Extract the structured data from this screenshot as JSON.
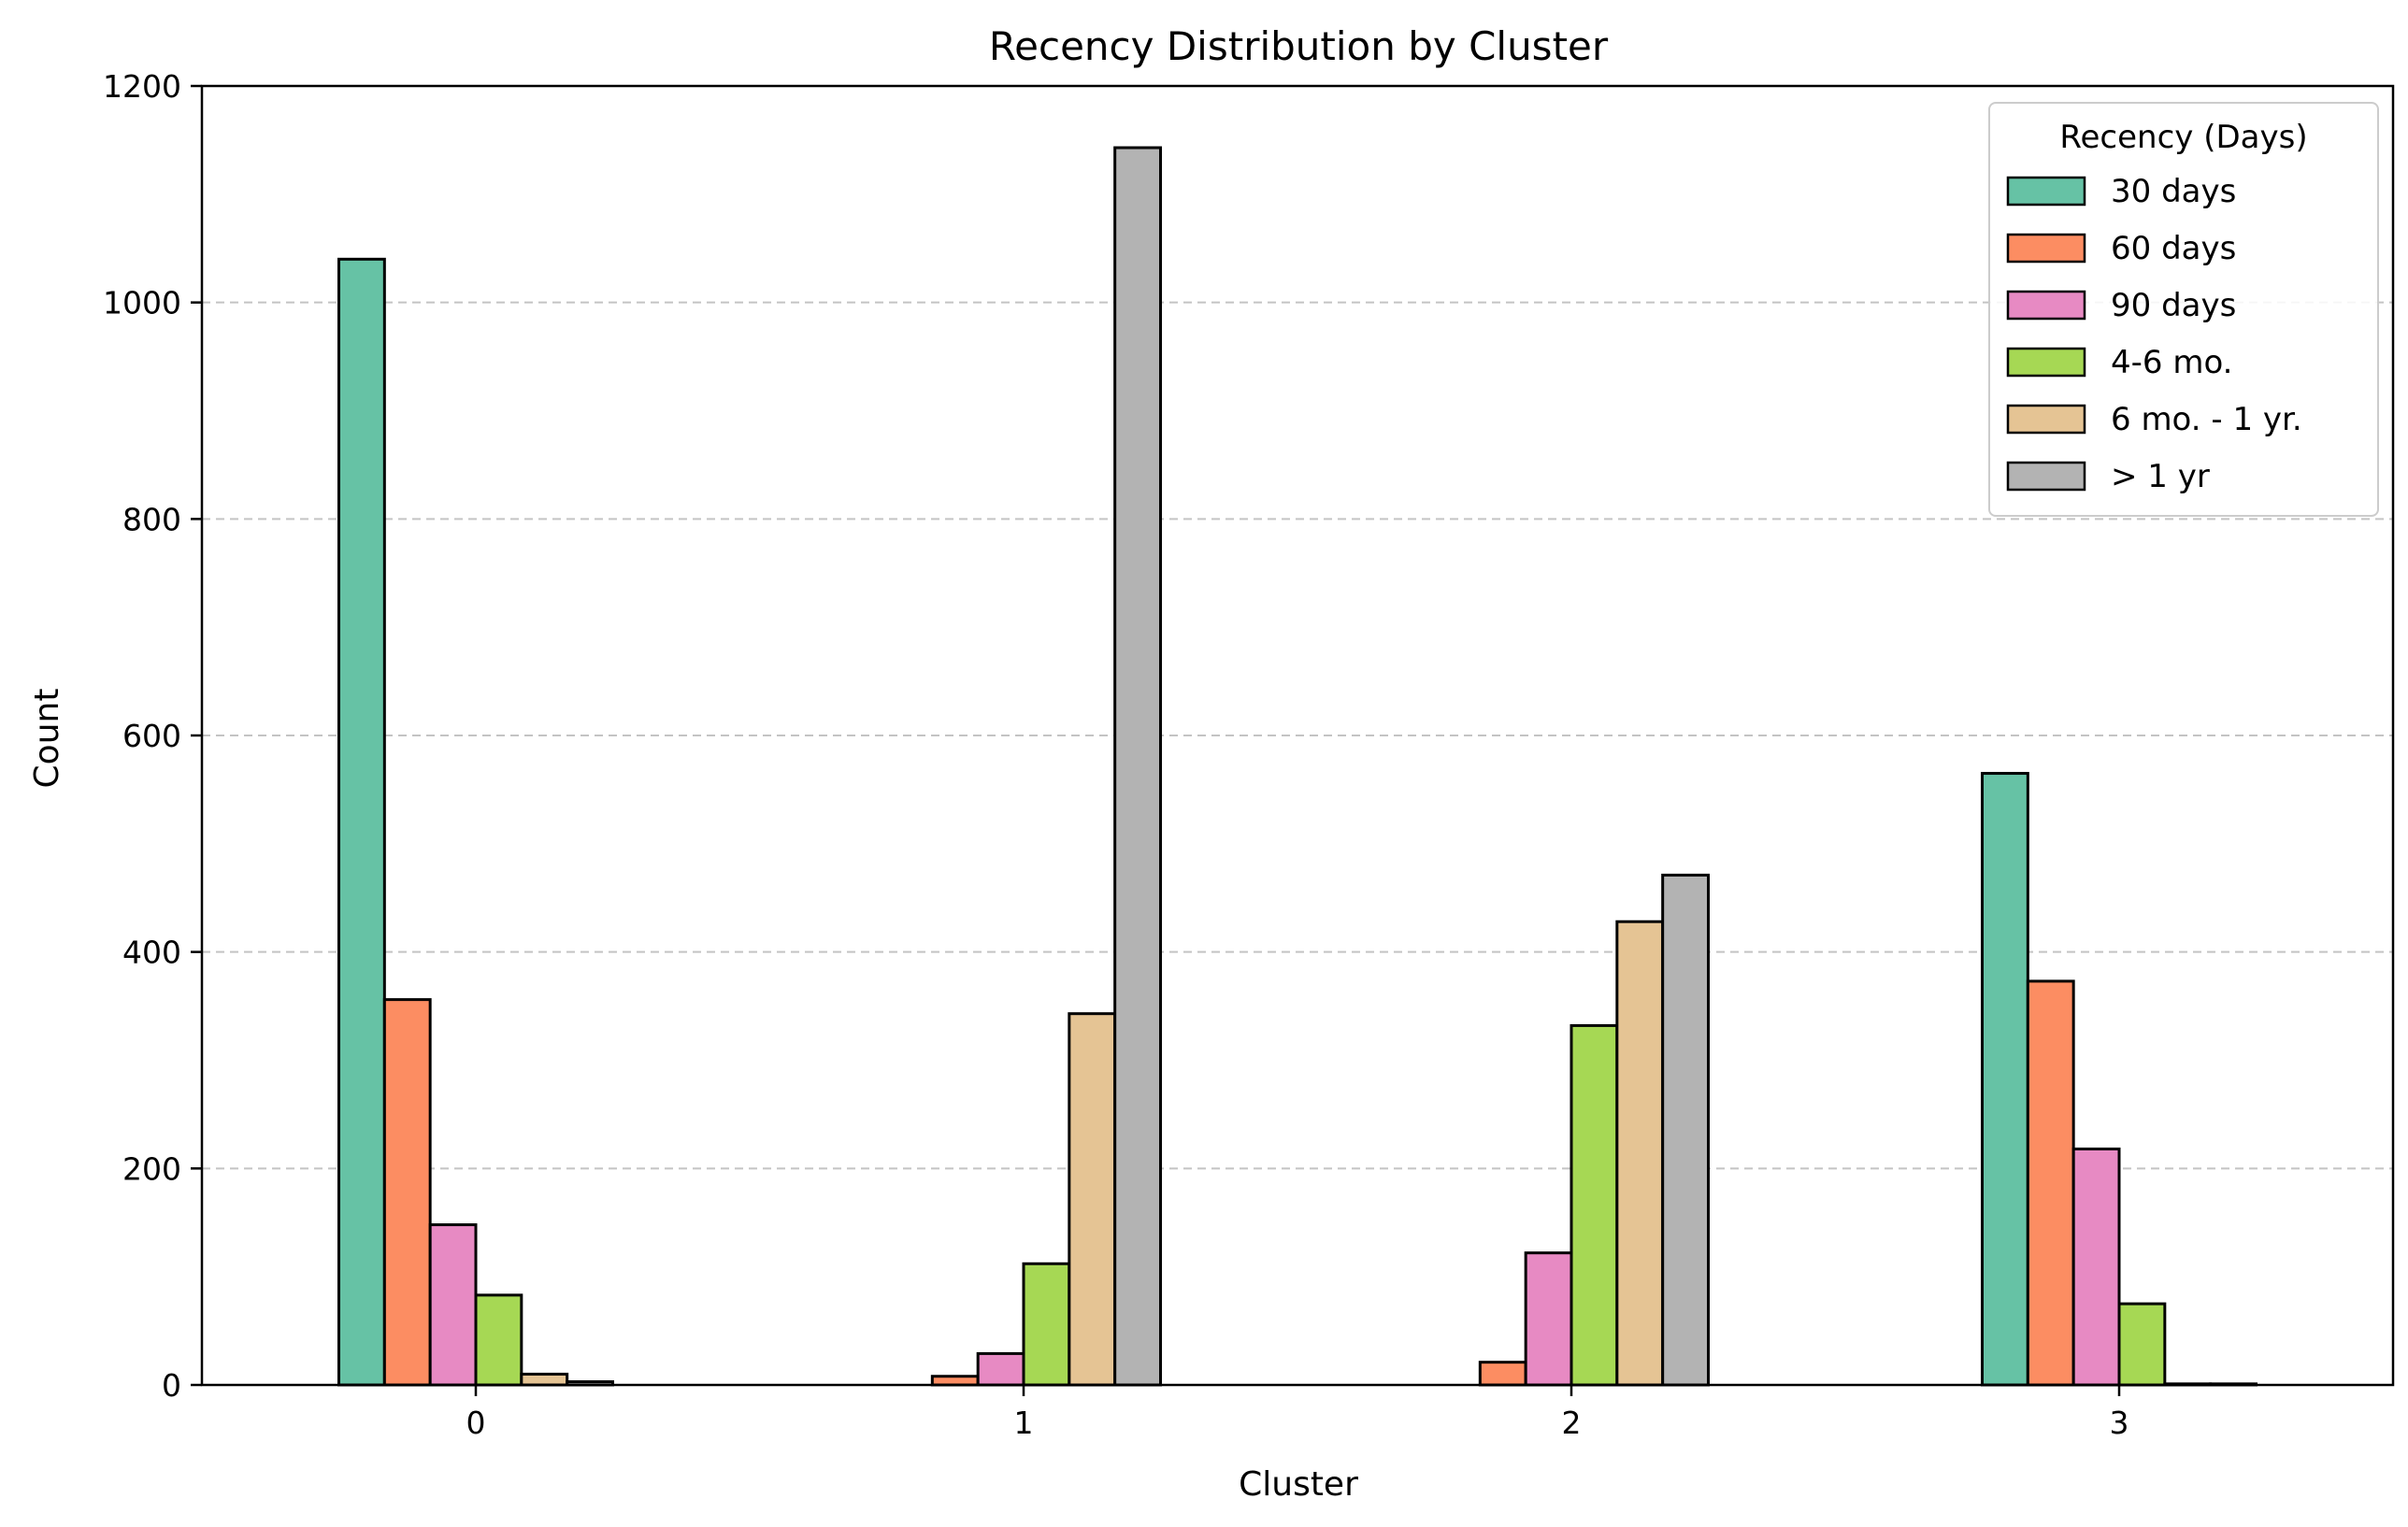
{
  "chart_data": {
    "type": "bar",
    "title": "Recency Distribution by Cluster",
    "xlabel": "Cluster",
    "ylabel": "Count",
    "categories": [
      "0",
      "1",
      "2",
      "3"
    ],
    "ylim": [
      0,
      1200
    ],
    "yticks": [
      0,
      200,
      400,
      600,
      800,
      1000,
      1200
    ],
    "grid": "y-dashed",
    "legend": {
      "title": "Recency (Days)",
      "placement": "top-right"
    },
    "series": [
      {
        "name": "30 days",
        "color": "#66c2a5",
        "values": [
          1040,
          0,
          0,
          565
        ]
      },
      {
        "name": "60 days",
        "color": "#fc8d62",
        "values": [
          356,
          8,
          21,
          373
        ]
      },
      {
        "name": "90 days",
        "color": "#e78ac3",
        "values": [
          148,
          29,
          122,
          218
        ]
      },
      {
        "name": "4-6 mo.",
        "color": "#a6d854",
        "values": [
          83,
          112,
          332,
          75
        ]
      },
      {
        "name": "6 mo. - 1 yr.",
        "color": "#e5c494",
        "values": [
          10,
          343,
          428,
          1
        ]
      },
      {
        "name": "> 1 yr",
        "color": "#b3b3b3",
        "values": [
          3,
          1143,
          471,
          1
        ]
      }
    ]
  }
}
